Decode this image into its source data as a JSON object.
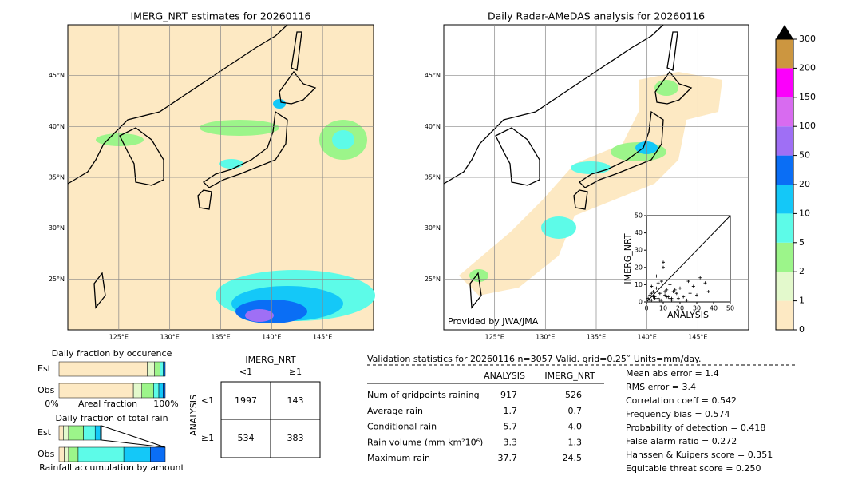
{
  "maps": [
    {
      "title": "IMERG_NRT estimates for 20260116",
      "xlim": [
        120,
        150
      ],
      "ylim": [
        20,
        50
      ],
      "xticks": [
        {
          "value": 125,
          "label": "125°E"
        },
        {
          "value": 130,
          "label": "130°E"
        },
        {
          "value": 135,
          "label": "135°E"
        },
        {
          "value": 140,
          "label": "140°E"
        },
        {
          "value": 145,
          "label": "145°E"
        }
      ],
      "yticks": [
        {
          "value": 25,
          "label": "25°N"
        },
        {
          "value": 30,
          "label": "30°N"
        },
        {
          "value": 35,
          "label": "35°N"
        },
        {
          "value": 40,
          "label": "40°N"
        },
        {
          "value": 45,
          "label": "45°N"
        }
      ]
    },
    {
      "title": "Daily Radar-AMeDAS analysis for 20260116",
      "credit": "Provided by JWA/JMA",
      "xlim": [
        120,
        150
      ],
      "ylim": [
        20,
        50
      ],
      "xticks": [
        {
          "value": 125,
          "label": "125°E"
        },
        {
          "value": 130,
          "label": "130°E"
        },
        {
          "value": 135,
          "label": "135°E"
        },
        {
          "value": 140,
          "label": "140°E"
        },
        {
          "value": 145,
          "label": "145°E"
        }
      ],
      "yticks": [
        {
          "value": 25,
          "label": "25°N"
        },
        {
          "value": 30,
          "label": "30°N"
        },
        {
          "value": 35,
          "label": "35°N"
        },
        {
          "value": 40,
          "label": "40°N"
        },
        {
          "value": 45,
          "label": "45°N"
        }
      ]
    }
  ],
  "colorbar": {
    "ticks": [
      0,
      1,
      2,
      5,
      10,
      20,
      50,
      100,
      150,
      200,
      300
    ],
    "colors": [
      "#fde9c3",
      "#e3f9cc",
      "#9cf58a",
      "#5dfbe8",
      "#14c8f8",
      "#0a6ef5",
      "#9f6ff5",
      "#d86bf0",
      "#fb00fb",
      "#cc9640"
    ]
  },
  "occurrence": {
    "title": "Daily fraction by occurence",
    "rows": [
      "Est",
      "Obs"
    ],
    "axis_labels": [
      "0%",
      "Areal fraction",
      "100%"
    ],
    "fractions": [
      [
        83,
        7,
        5,
        3,
        1,
        1
      ],
      [
        70,
        8,
        11,
        5,
        4,
        2
      ]
    ]
  },
  "total_rain": {
    "title": "Daily fraction of total rain",
    "rows": [
      "Est",
      "Obs"
    ],
    "xlabel": "Rainfall accumulation by amount",
    "fractions": [
      [
        4,
        5,
        14,
        11,
        5,
        1
      ],
      [
        5,
        4,
        9,
        43,
        25,
        14
      ]
    ]
  },
  "contingency": {
    "title": "IMERG_NRT",
    "ylabel": "ANALYSIS",
    "cols": [
      "<1",
      "≥1"
    ],
    "rows": [
      "<1",
      "≥1"
    ],
    "cells": [
      [
        "1997",
        "143"
      ],
      [
        "534",
        "383"
      ]
    ]
  },
  "validation": {
    "title": "Validation statistics for 20260116  n=3057 Valid. grid=0.25˚ Units=mm/day.",
    "headers": [
      "ANALYSIS",
      "IMERG_NRT"
    ],
    "rows": [
      [
        "Num of gridpoints raining",
        "917",
        "526"
      ],
      [
        "Average rain",
        "1.7",
        "0.7"
      ],
      [
        "Conditional rain",
        "5.7",
        "4.0"
      ],
      [
        "Rain volume (mm km²10⁶)",
        "3.3",
        "1.3"
      ],
      [
        "Maximum rain",
        "37.7",
        "24.5"
      ]
    ],
    "scores": [
      "Mean abs error =    1.4",
      "RMS error =    3.4",
      "Correlation coeff =  0.542",
      "Frequency bias =  0.574",
      "Probability of detection =  0.418",
      "False alarm ratio =  0.272",
      "Hanssen & Kuipers score =  0.351",
      "Equitable threat score =  0.250"
    ]
  },
  "scatter": {
    "xlabel": "ANALYSIS",
    "ylabel": "IMERG_NRT",
    "xlim": [
      0,
      50
    ],
    "ylim": [
      0,
      50
    ],
    "xticks": [
      0,
      10,
      20,
      30,
      40,
      50
    ],
    "yticks": [
      0,
      10,
      20,
      30,
      40,
      50
    ],
    "x": [
      1,
      2,
      3,
      4,
      5,
      6,
      7,
      8,
      9,
      10,
      11,
      12,
      13,
      14,
      15,
      16,
      18,
      20,
      22,
      25,
      28,
      30,
      32,
      35,
      37,
      2,
      3,
      5,
      6,
      8,
      10,
      12,
      15,
      17,
      19,
      3,
      4,
      7,
      9,
      11,
      14,
      24,
      26
    ],
    "y": [
      2,
      4,
      1,
      6,
      3,
      8,
      2,
      5,
      12,
      20,
      4,
      7,
      3,
      10,
      2,
      6,
      5,
      8,
      3,
      12,
      9,
      4,
      14,
      11,
      6,
      1,
      9,
      2,
      15,
      1,
      23,
      3,
      1,
      7,
      2,
      5,
      3,
      11,
      1,
      6,
      2,
      1,
      5
    ]
  }
}
